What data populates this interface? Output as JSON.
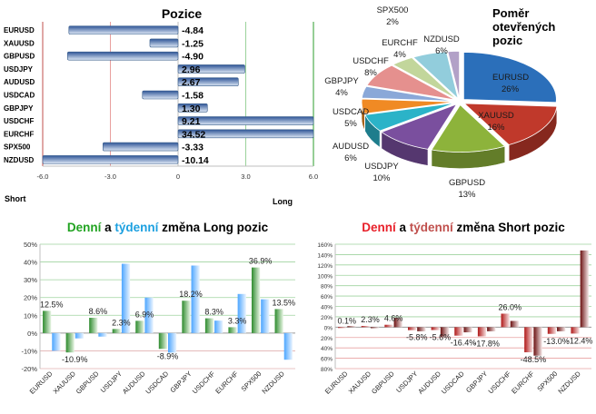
{
  "colors": {
    "bar_blue": "#4a73b5",
    "bar_light": "#dbe6f5",
    "green": "#2e8b2e",
    "green_light": "#c8e6c0",
    "sky": "#4da6ff",
    "sky_light": "#d6ebff",
    "dark_red": "#8b1a1a",
    "red": "#e8202a",
    "title_green": "#21a321",
    "title_blue": "#1ca0e0",
    "title_red": "#e8202a",
    "title_brown": "#c0504d"
  },
  "chart_data": [
    {
      "type": "bar",
      "orientation": "horizontal",
      "title": "Pozice",
      "categories": [
        "EURUSD",
        "XAUUSD",
        "GBPUSD",
        "USDJPY",
        "AUDUSD",
        "USDCAD",
        "GBPJPY",
        "USDCHF",
        "EURCHF",
        "SPX500",
        "NZDUSD"
      ],
      "values": [
        -4.84,
        -1.25,
        -4.9,
        2.96,
        2.67,
        -1.58,
        1.3,
        9.21,
        34.52,
        -3.33,
        -10.14
      ],
      "value_labels": [
        "-4.84",
        "-1.25",
        "-4.90",
        "2.96",
        "2.67",
        "-1.58",
        "1.30",
        "9.21",
        "34.52",
        "-3.33",
        "-10.14"
      ],
      "xlim": [
        -6.0,
        6.0
      ],
      "xticks": [
        -6.0,
        -3.0,
        0,
        3.0,
        6.0
      ],
      "xtick_labels": [
        "-6.0",
        "-3.0",
        "0",
        "3.0",
        "6.0"
      ],
      "left_label": "Short",
      "right_label": "Long",
      "grid": true
    },
    {
      "type": "pie",
      "style": "3d",
      "title_lines": [
        "Poměr",
        "otevřených",
        "pozic"
      ],
      "slices": [
        {
          "name": "EURUSD",
          "pct_label": "26%",
          "value": 26,
          "color": "#2b6fba"
        },
        {
          "name": "XAUUSD",
          "pct_label": "16%",
          "value": 16,
          "color": "#c0392b"
        },
        {
          "name": "GBPUSD",
          "pct_label": "13%",
          "value": 13,
          "color": "#8db33b"
        },
        {
          "name": "USDJPY",
          "pct_label": "10%",
          "value": 10,
          "color": "#7a4f9e"
        },
        {
          "name": "AUDUSD",
          "pct_label": "6%",
          "value": 6,
          "color": "#2bb3c8"
        },
        {
          "name": "USDCAD",
          "pct_label": "5%",
          "value": 5,
          "color": "#f08a24"
        },
        {
          "name": "GBPJPY",
          "pct_label": "4%",
          "value": 4,
          "color": "#8aa8d8"
        },
        {
          "name": "USDCHF",
          "pct_label": "8%",
          "value": 8,
          "color": "#e5908e"
        },
        {
          "name": "EURCHF",
          "pct_label": "4%",
          "value": 4,
          "color": "#c2d69b"
        },
        {
          "name": "NZDUSD",
          "pct_label": "6%",
          "value": 6,
          "color": "#92cddc"
        },
        {
          "name": "SPX500",
          "pct_label": "2%",
          "value": 2,
          "color": "#b2a1c7"
        }
      ]
    },
    {
      "type": "bar",
      "title_parts": [
        "Denní",
        " a ",
        "týdenní",
        " změna Long pozic"
      ],
      "categories": [
        "EURUSD",
        "XAUUSD",
        "GBPUSD",
        "USDJPY",
        "AUDUSD",
        "USDCAD",
        "GBPJPY",
        "USDCHF",
        "EURCHF",
        "SPX500",
        "NZDUSD"
      ],
      "series": [
        {
          "name": "Denní",
          "values": [
            12.5,
            -10.9,
            8.6,
            2.3,
            6.9,
            -8.9,
            18.2,
            8.3,
            3.3,
            36.9,
            13.5
          ]
        },
        {
          "name": "týdenní",
          "values": [
            -10,
            -3,
            -2,
            39,
            20,
            -11,
            38,
            7,
            22,
            19,
            -15
          ]
        }
      ],
      "data_labels": [
        "12.5%",
        "-10.9%",
        "8.6%",
        "2.3%",
        "6.9%",
        "-8.9%",
        "18.2%",
        "8.3%",
        "3.3%",
        "36.9%",
        "13.5%"
      ],
      "ylim": [
        -20,
        50
      ],
      "yticks": [
        -20,
        -10,
        0,
        10,
        20,
        30,
        40,
        50
      ],
      "ytick_labels": [
        "-20%",
        "-10%",
        "0%",
        "10%",
        "20%",
        "30%",
        "40%",
        "50%"
      ]
    },
    {
      "type": "bar",
      "title_parts": [
        "Denní",
        " a ",
        "týdenní",
        " změna Short pozic"
      ],
      "categories": [
        "EURUSD",
        "XAUUSD",
        "GBPUSD",
        "USDJPY",
        "AUDUSD",
        "USDCAD",
        "GBPJPY",
        "USDCHF",
        "EURCHF",
        "SPX500",
        "NZDUSD"
      ],
      "series": [
        {
          "name": "Denní",
          "values": [
            0.1,
            2.3,
            4.6,
            -5.8,
            -5.6,
            -16.4,
            -17.8,
            26.0,
            -48.5,
            -13.0,
            -12.4
          ]
        },
        {
          "name": "týdenní",
          "values": [
            2,
            -2,
            18,
            -8,
            -18,
            -10,
            -8,
            12,
            -55,
            -8,
            148
          ]
        }
      ],
      "data_labels": [
        "0.1%",
        "2.3%",
        "4.6%",
        "-5.8%",
        "-5.6%",
        "-16.4%",
        "-17.8%",
        "26.0%",
        "-48.5%",
        "-13.0%",
        "-12.4%"
      ],
      "ylim": [
        -80,
        160
      ],
      "yticks": [
        -80,
        -60,
        -40,
        -20,
        0,
        20,
        40,
        60,
        80,
        100,
        120,
        140,
        160
      ],
      "ytick_labels": [
        "80%",
        "60%",
        "40%",
        "20%",
        "0%",
        "20%",
        "40%",
        "60%",
        "80%",
        "100%",
        "120%",
        "140%",
        "160%"
      ]
    }
  ]
}
